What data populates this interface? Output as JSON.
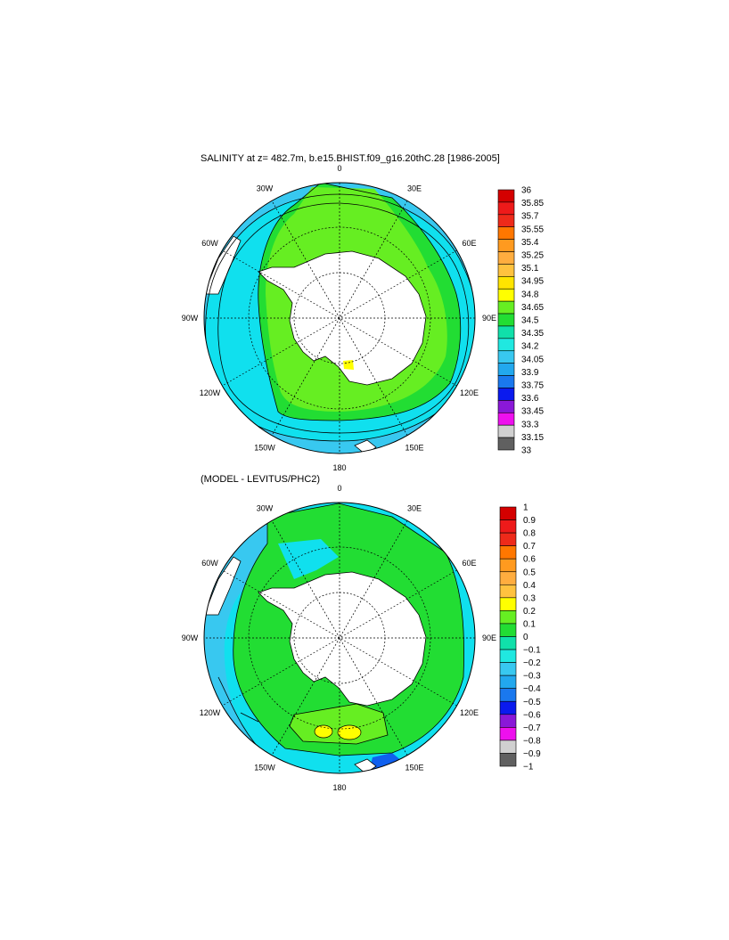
{
  "titles": {
    "top": "SALINITY at z= 482.7m, b.e15.BHIST.f09_g16.20thC.28 [1986-2005]",
    "bottom": "(MODEL - LEVITUS/PHC2)"
  },
  "longitude_labels": [
    "0",
    "30E",
    "60E",
    "90E",
    "120E",
    "150E",
    "180",
    "150W",
    "120W",
    "90W",
    "60W",
    "30W"
  ],
  "colors": {
    "land": "#ffffff",
    "green": "#22dd33",
    "lightgreen": "#66ee22",
    "cyan": "#10e0ee",
    "lightblue": "#38c8f0",
    "medblue": "#22a8ee",
    "blue": "#1060ee",
    "yellow": "#ffff00"
  },
  "maps": [
    {
      "id": "salinity",
      "colorbar": {
        "labels": [
          "36",
          "35.85",
          "35.7",
          "35.55",
          "35.4",
          "35.25",
          "35.1",
          "34.95",
          "34.8",
          "34.65",
          "34.5",
          "34.35",
          "34.2",
          "34.05",
          "33.9",
          "33.75",
          "33.6",
          "33.45",
          "33.3",
          "33.15",
          "33"
        ],
        "colors": [
          "#d40000",
          "#ee1a1a",
          "#ee2a1a",
          "#ff7700",
          "#ff9a1f",
          "#ffad3f",
          "#ffc23f",
          "#ffe500",
          "#ffff00",
          "#66ee22",
          "#22dd33",
          "#10e0aa",
          "#20e8e0",
          "#38c8f0",
          "#22a8ee",
          "#1a78ee",
          "#0a1aee",
          "#8a18d8",
          "#ee10ee",
          "#d0d0d0",
          "#606060"
        ]
      }
    },
    {
      "id": "difference",
      "colorbar": {
        "labels": [
          "1",
          "0.9",
          "0.8",
          "0.7",
          "0.6",
          "0.5",
          "0.4",
          "0.3",
          "0.2",
          "0.1",
          "0",
          "−0.1",
          "−0.2",
          "−0.3",
          "−0.4",
          "−0.5",
          "−0.6",
          "−0.7",
          "−0.8",
          "−0.9",
          "−1"
        ],
        "colors": [
          "#d40000",
          "#ee1a1a",
          "#ee2a1a",
          "#ff7700",
          "#ff9a1f",
          "#ffad3f",
          "#ffc23f",
          "#ffff00",
          "#66ee22",
          "#22dd33",
          "#10e0aa",
          "#20e8e0",
          "#38c8f0",
          "#22a8ee",
          "#1a78ee",
          "#0a1aee",
          "#8a18d8",
          "#ee10ee",
          "#d0d0d0",
          "#606060"
        ]
      }
    }
  ]
}
